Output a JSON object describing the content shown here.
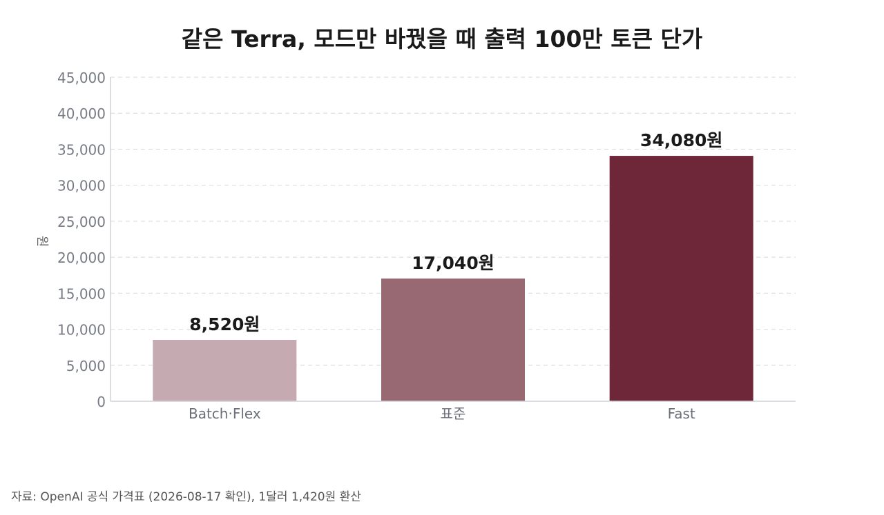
{
  "chart_data": {
    "type": "bar",
    "title": "같은 Terra, 모드만 바꿨을 때 출력 100만 토큰 단가",
    "xlabel": "",
    "ylabel": "원",
    "ylim": [
      0,
      45000
    ],
    "yticks": [
      0,
      5000,
      10000,
      15000,
      20000,
      25000,
      30000,
      35000,
      40000,
      45000
    ],
    "ytick_labels": [
      "0",
      "5,000",
      "10,000",
      "15,000",
      "20,000",
      "25,000",
      "30,000",
      "35,000",
      "40,000",
      "45,000"
    ],
    "grid": true,
    "categories": [
      "Batch·Flex",
      "표준",
      "Fast"
    ],
    "values": [
      8520,
      17040,
      34080
    ],
    "data_labels": [
      "8,520원",
      "17,040원",
      "34,080원"
    ],
    "colors": [
      "#c6aab2",
      "#986873",
      "#6d2739"
    ]
  },
  "source": "자료: OpenAI 공식 가격표 (2026-08-17 확인), 1달러 1,420원 환산"
}
